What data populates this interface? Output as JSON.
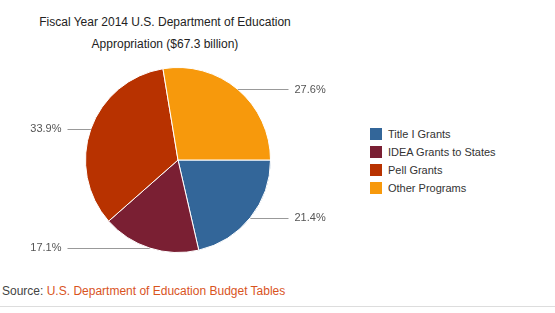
{
  "chart_data": {
    "type": "pie",
    "title": [
      "Fiscal Year 2014 U.S. Department of Education",
      "Appropriation ($67.3 billion)"
    ],
    "categories": [
      "Title I Grants",
      "IDEA Grants to States",
      "Pell Grants",
      "Other Programs"
    ],
    "values": [
      21.4,
      17.1,
      33.9,
      27.6
    ],
    "value_labels": [
      "21.4%",
      "17.1%",
      "33.9%",
      "27.6%"
    ],
    "colors": [
      "#336699",
      "#7a1f33",
      "#b83200",
      "#f7990c"
    ],
    "data_labels": true,
    "legend": "right",
    "source_label": "Source:",
    "source": "U.S. Department of Education Budget Tables"
  }
}
